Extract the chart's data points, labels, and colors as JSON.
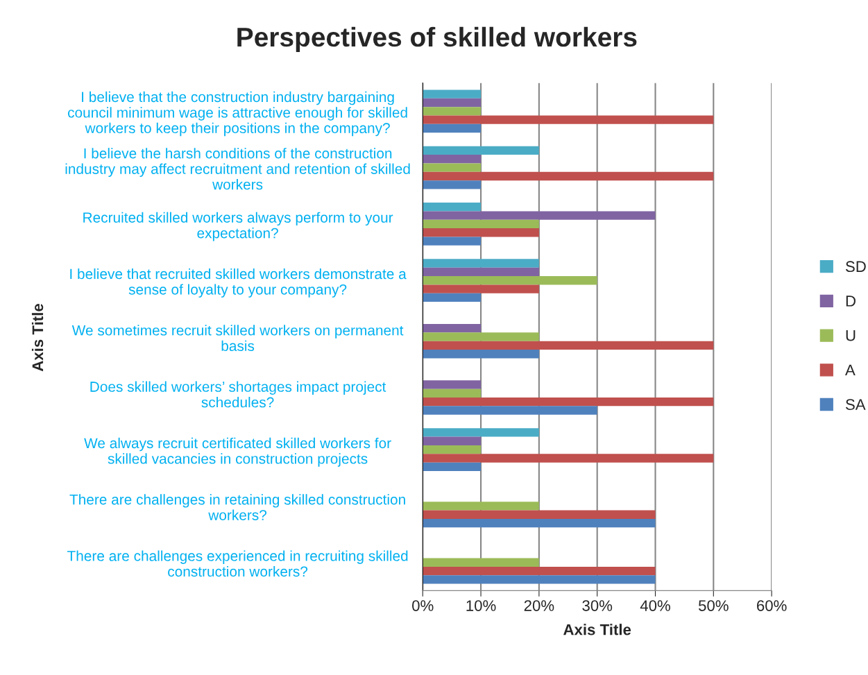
{
  "chart_data": {
    "type": "bar",
    "orientation": "horizontal",
    "title": "Perspectives of skilled workers",
    "xlabel": "Axis Title",
    "ylabel": "Axis Title",
    "categories": [
      "I believe that the construction industry bargaining\ncouncil minimum wage is attractive enough for skilled\nworkers to keep their positions in the company?",
      "I believe the harsh conditions of the construction\nindustry may affect recruitment and retention of skilled\nworkers",
      "Recruited skilled workers always perform to your\nexpectation?",
      "I believe that recruited skilled workers demonstrate a\nsense of loyalty to your company?",
      "We sometimes recruit skilled workers on permanent\nbasis",
      "Does skilled workers’ shortages impact project\nschedules?",
      "We always recruit certificated skilled workers for\nskilled vacancies in construction projects",
      "There are challenges in retaining skilled construction\nworkers?",
      "There are challenges experienced in recruiting skilled\nconstruction workers?"
    ],
    "series": [
      {
        "name": "SD",
        "color": "#4bacc6",
        "values": [
          10,
          20,
          10,
          20,
          null,
          null,
          20,
          null,
          null
        ]
      },
      {
        "name": "D",
        "color": "#8064a2",
        "values": [
          10,
          10,
          40,
          20,
          10,
          10,
          10,
          null,
          null
        ]
      },
      {
        "name": "U",
        "color": "#9bbb59",
        "values": [
          10,
          10,
          20,
          30,
          20,
          10,
          10,
          20,
          20
        ]
      },
      {
        "name": "A",
        "color": "#c0504d",
        "values": [
          50,
          50,
          20,
          20,
          50,
          50,
          50,
          40,
          40
        ]
      },
      {
        "name": "SA",
        "color": "#4f81bd",
        "values": [
          10,
          10,
          10,
          10,
          20,
          30,
          10,
          40,
          40
        ]
      }
    ],
    "xlim": [
      0,
      60
    ],
    "xticks": [
      {
        "value": 0,
        "label": "0%"
      },
      {
        "value": 10,
        "label": "10%"
      },
      {
        "value": 20,
        "label": "20%"
      },
      {
        "value": 30,
        "label": "30%"
      },
      {
        "value": 40,
        "label": "40%"
      },
      {
        "value": 50,
        "label": "50%"
      },
      {
        "value": 60,
        "label": "60%"
      }
    ],
    "grid": "x",
    "legend": "right"
  }
}
